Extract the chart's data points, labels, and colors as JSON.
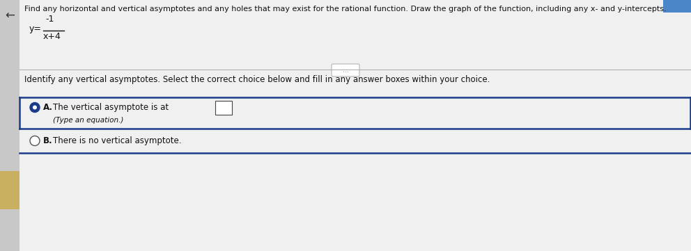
{
  "bg_color": "#d8d8d8",
  "white_panel_color": "#f0f0f0",
  "top_accent_color": "#4a86c8",
  "header_text": "Find any horizontal and vertical asymptotes and any holes that may exist for the rational function. Draw the graph of the function, including any x- and y-intercepts.",
  "formula_numerator": "-1",
  "formula_denominator": "x+4",
  "dots_button_text": "...",
  "section2_text": "Identify any vertical asymptotes. Select the correct choice below and fill in any answer boxes within your choice.",
  "choice_A_text": "The vertical asymptote is at",
  "choice_A_subtext": "(Type an equation.)",
  "choice_B_text": "There is no vertical asymptote.",
  "box_border_color": "#444444",
  "radio_selected_fill": "#1a3a8a",
  "radio_selected_border": "#1a3a8a",
  "radio_unselected_fill": "#ffffff",
  "radio_unselected_border": "#555555",
  "blue_line_color": "#1a3a8a",
  "divider_color": "#aaaaaa",
  "left_accent_color": "#c8b060",
  "font_color": "#111111",
  "back_arrow_color": "#333333",
  "font_size_header": 8.0,
  "font_size_body": 8.5,
  "font_size_small": 7.5,
  "top_right_bar_color": "#4a86c8"
}
